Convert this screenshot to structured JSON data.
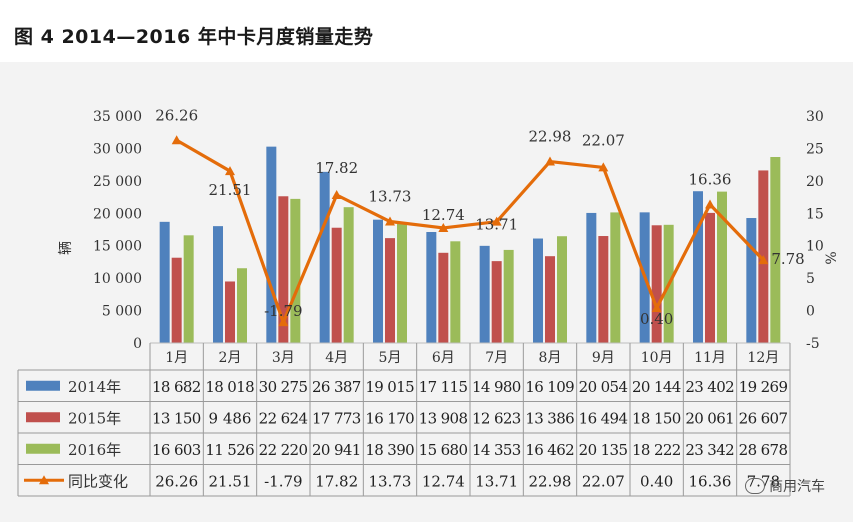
{
  "title": "图 4  2014—2016 年中卡月度销量走势",
  "watermark": "商用汽车",
  "chart_data": {
    "type": "bar",
    "categories": [
      "1月",
      "2月",
      "3月",
      "4月",
      "5月",
      "6月",
      "7月",
      "8月",
      "9月",
      "10月",
      "11月",
      "12月"
    ],
    "series": [
      {
        "name": "2014年",
        "color": "#4f81bd",
        "values": [
          18682,
          18018,
          30275,
          26387,
          19015,
          17115,
          14980,
          16109,
          20054,
          20144,
          23402,
          19269
        ],
        "display": [
          "18 682",
          "18 018",
          "30 275",
          "26 387",
          "19 015",
          "17 115",
          "14 980",
          "16 109",
          "20 054",
          "20 144",
          "23 402",
          "19 269"
        ]
      },
      {
        "name": "2015年",
        "color": "#c0504d",
        "values": [
          13150,
          9486,
          22624,
          17773,
          16170,
          13908,
          12623,
          13386,
          16494,
          18150,
          20061,
          26607
        ],
        "display": [
          "13 150",
          "9 486",
          "22 624",
          "17 773",
          "16 170",
          "13 908",
          "12 623",
          "13 386",
          "16 494",
          "18 150",
          "20 061",
          "26 607"
        ]
      },
      {
        "name": "2016年",
        "color": "#9bbb59",
        "values": [
          16603,
          11526,
          22220,
          20941,
          18390,
          15680,
          14353,
          16462,
          20135,
          18222,
          23342,
          28678
        ],
        "display": [
          "16 603",
          "11 526",
          "22 220",
          "20 941",
          "18 390",
          "15 680",
          "14 353",
          "16 462",
          "20 135",
          "18 222",
          "23 342",
          "28 678"
        ]
      }
    ],
    "line": {
      "name": "同比变化",
      "color": "#e46c0a",
      "values": [
        26.26,
        21.51,
        -1.79,
        17.82,
        13.73,
        12.74,
        13.71,
        22.98,
        22.07,
        0.4,
        16.36,
        7.78
      ],
      "display": [
        "26.26",
        "21.51",
        "-1.79",
        "17.82",
        "13.73",
        "12.74",
        "13.71",
        "22.98",
        "22.07",
        "0.40",
        "16.36",
        "7.78"
      ]
    },
    "ylabel_left": "辆",
    "ylabel_right": "%",
    "ylim_left": [
      0,
      35000
    ],
    "ylim_right": [
      -5,
      30
    ],
    "yticks_left": [
      "0",
      "5 000",
      "10 000",
      "15 000",
      "20 000",
      "25 000",
      "30 000",
      "35 000"
    ],
    "yticks_right": [
      "-5",
      "0",
      "5",
      "10",
      "15",
      "20",
      "25",
      "30"
    ],
    "legend": "data-table"
  }
}
